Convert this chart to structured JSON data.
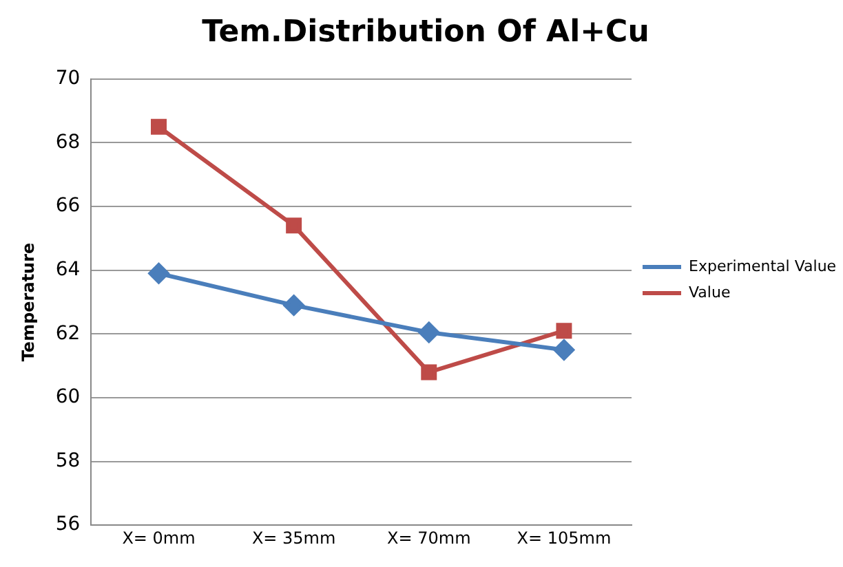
{
  "chart_data": {
    "type": "line",
    "title": "Tem.Distribution Of Al+Cu",
    "ylabel": "Temperature",
    "categories": [
      "X= 0mm",
      "X= 35mm",
      "X= 70mm",
      "X= 105mm"
    ],
    "series": [
      {
        "name": "Experimental Value",
        "color": "#4a7ebb",
        "marker": "diamond",
        "values": [
          63.9,
          62.9,
          62.05,
          61.5
        ]
      },
      {
        "name": "Value",
        "color": "#be4b48",
        "marker": "square",
        "values": [
          68.5,
          65.4,
          60.8,
          62.1
        ]
      }
    ],
    "ylim": [
      56,
      70
    ],
    "yticks": [
      56,
      58,
      60,
      62,
      64,
      66,
      68,
      70
    ],
    "grid": "y",
    "legend": "right"
  }
}
